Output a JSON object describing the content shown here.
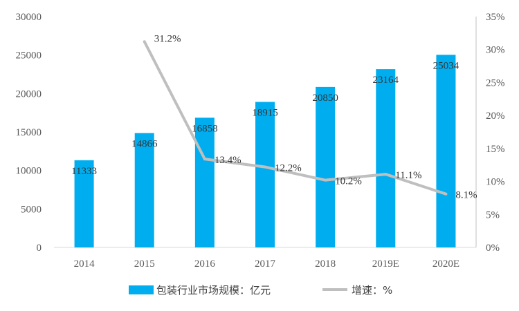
{
  "chart_data": {
    "type": "bar",
    "categories": [
      "2014",
      "2015",
      "2016",
      "2017",
      "2018",
      "2019E",
      "2020E"
    ],
    "series": [
      {
        "name": "包装行业市场规模：亿元",
        "type": "bar",
        "axis": "left",
        "color": "#00AEEF",
        "values": [
          11333,
          14866,
          16858,
          18915,
          20850,
          23164,
          25034
        ],
        "labels": [
          "11333",
          "14866",
          "16858",
          "18915",
          "20850",
          "23164",
          "25034"
        ]
      },
      {
        "name": "增速：%",
        "type": "line",
        "axis": "right",
        "color": "#BFBFBF",
        "values": [
          null,
          31.2,
          13.4,
          12.2,
          10.2,
          11.1,
          8.1
        ],
        "labels": [
          "",
          "31.2%",
          "13.4%",
          "12.2%",
          "10.2%",
          "11.1%",
          "8.1%"
        ]
      }
    ],
    "y_left": {
      "ylim": [
        0,
        30000
      ],
      "ticks": [
        "0",
        "5000",
        "10000",
        "15000",
        "20000",
        "25000",
        "30000"
      ]
    },
    "y_right": {
      "ylim": [
        0,
        35
      ],
      "ticks": [
        "0%",
        "5%",
        "10%",
        "15%",
        "20%",
        "25%",
        "30%",
        "35%"
      ]
    },
    "grid": false,
    "legend_position": "bottom"
  }
}
